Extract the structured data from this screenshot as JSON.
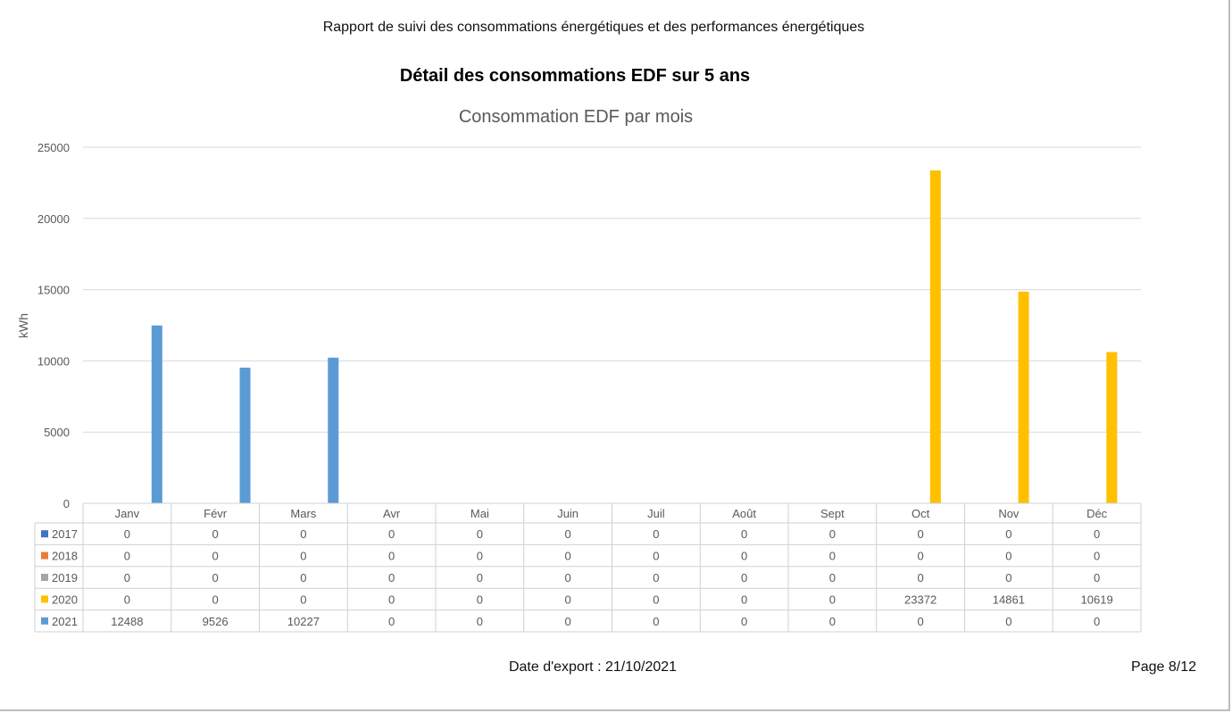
{
  "header": {
    "report_title": "Rapport de suivi des consommations énergétiques et des performances énergétiques",
    "section_title": "Détail des consommations EDF sur 5 ans"
  },
  "chart_data": {
    "type": "bar",
    "title": "Consommation EDF par mois",
    "xlabel": "",
    "ylabel": "kWh",
    "ylim": [
      0,
      25000
    ],
    "yticks": [
      0,
      5000,
      10000,
      15000,
      20000,
      25000
    ],
    "grid": true,
    "legend": "data-table",
    "categories": [
      "Janv",
      "Févr",
      "Mars",
      "Avr",
      "Mai",
      "Juin",
      "Juil",
      "Août",
      "Sept",
      "Oct",
      "Nov",
      "Déc"
    ],
    "series": [
      {
        "name": "2017",
        "color": "#4472c4",
        "values": [
          0,
          0,
          0,
          0,
          0,
          0,
          0,
          0,
          0,
          0,
          0,
          0
        ]
      },
      {
        "name": "2018",
        "color": "#ed7d31",
        "values": [
          0,
          0,
          0,
          0,
          0,
          0,
          0,
          0,
          0,
          0,
          0,
          0
        ]
      },
      {
        "name": "2019",
        "color": "#a5a5a5",
        "values": [
          0,
          0,
          0,
          0,
          0,
          0,
          0,
          0,
          0,
          0,
          0,
          0
        ]
      },
      {
        "name": "2020",
        "color": "#ffc000",
        "values": [
          0,
          0,
          0,
          0,
          0,
          0,
          0,
          0,
          0,
          23372,
          14861,
          10619
        ]
      },
      {
        "name": "2021",
        "color": "#5b9bd5",
        "values": [
          12488,
          9526,
          10227,
          0,
          0,
          0,
          0,
          0,
          0,
          0,
          0,
          0
        ]
      }
    ]
  },
  "footer": {
    "export_date": "Date d'export : 21/10/2021",
    "page": "Page 8/12"
  }
}
